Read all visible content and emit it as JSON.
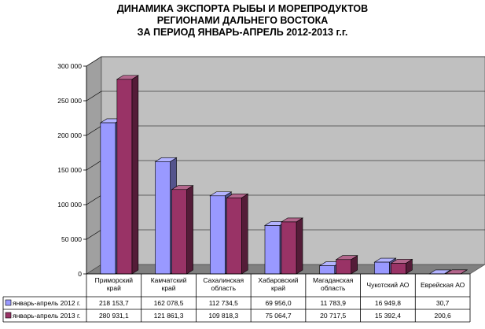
{
  "chart_data": {
    "type": "bar",
    "title_lines": [
      "ДИНАМИКА ЭКСПОРТА РЫБЫ И МОРЕПРОДУКТОВ",
      "РЕГИОНАМИ ДАЛЬНЕГО ВОСТОКА",
      "ЗА ПЕРИОД ЯНВАРЬ-АПРЕЛЬ 2012-2013 г.г."
    ],
    "categories": [
      [
        "Приморский",
        "край"
      ],
      [
        "Камчатский",
        "край"
      ],
      [
        "Сахалинская",
        "область"
      ],
      [
        "Хабаровский",
        "край"
      ],
      [
        "Магаданская",
        "область"
      ],
      [
        "Чукотский АО"
      ],
      [
        "Еврейская АО"
      ]
    ],
    "series": [
      {
        "name": "январь-апрель 2012 г.",
        "color": "#9999FF",
        "values": [
          218153.7,
          162078.5,
          112734.5,
          69956.0,
          11783.9,
          16949.8,
          30.7
        ],
        "labels": [
          "218 153,7",
          "162 078,5",
          "112 734,5",
          "69 956,0",
          "11 783,9",
          "16 949,8",
          "30,7"
        ]
      },
      {
        "name": "январь-апрель 2013 г.",
        "color": "#993366",
        "values": [
          280931.1,
          121861.3,
          109818.3,
          75064.7,
          20717.5,
          15392.4,
          200.6
        ],
        "labels": [
          "280 931,1",
          "121 861,3",
          "109 818,3",
          "75 064,7",
          "20 717,5",
          "15 392,4",
          "200,6"
        ]
      }
    ],
    "yticks": [
      0,
      50000,
      100000,
      150000,
      200000,
      250000,
      300000
    ],
    "ytick_labels": [
      "0",
      "50 000",
      "100 000",
      "150 000",
      "200 000",
      "250 000",
      "300 000"
    ],
    "ylim": [
      0,
      300000
    ],
    "grid": true,
    "plot_background": "#C0C0C0",
    "legend": "data-table-below"
  }
}
